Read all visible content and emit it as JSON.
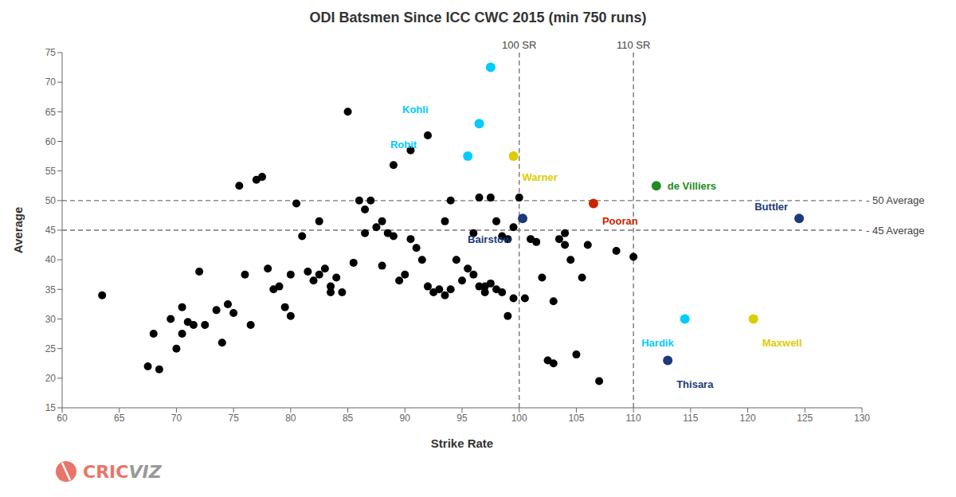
{
  "chart_data": {
    "type": "scatter",
    "title": "ODI Batsmen Since ICC CWC 2015 (min 750 runs)",
    "xlabel": "Strike Rate",
    "ylabel": "Average",
    "xlim": [
      60,
      130
    ],
    "ylim": [
      15,
      75
    ],
    "xticks": [
      60,
      65,
      70,
      75,
      80,
      85,
      90,
      95,
      100,
      105,
      110,
      115,
      120,
      125,
      130
    ],
    "yticks": [
      15,
      20,
      25,
      30,
      35,
      40,
      45,
      50,
      55,
      60,
      65,
      70,
      75
    ],
    "grid": false,
    "series": [
      {
        "color": "#000000",
        "x": [
          63.5,
          67.5,
          68.0,
          68.5,
          69.5,
          70.0,
          70.5,
          70.5,
          71.0,
          71.5,
          72.0,
          72.5,
          73.5,
          74.0,
          74.5,
          75.0,
          75.5,
          76.0,
          76.5,
          77.0,
          77.5,
          78.0,
          78.5,
          79.0,
          79.5,
          80.0,
          80.0,
          80.5,
          81.0,
          81.5,
          82.0,
          82.5,
          82.5,
          83.0,
          83.5,
          83.5,
          84.0,
          84.5,
          85.0,
          85.5,
          86.0,
          86.5,
          86.5,
          87.0,
          87.5,
          88.0,
          88.0,
          88.5,
          89.0,
          89.0,
          89.5,
          90.0,
          90.5,
          90.5,
          91.0,
          91.5,
          92.0,
          92.0,
          92.5,
          93.0,
          93.5,
          93.5,
          94.0,
          94.0,
          94.5,
          95.0,
          95.5,
          96.0,
          96.0,
          96.5,
          96.5,
          97.0,
          97.0,
          97.5,
          97.5,
          98.0,
          98.0,
          98.5,
          98.5,
          99.0,
          99.0,
          99.5,
          99.5,
          100.0,
          100.5,
          101.0,
          101.5,
          102.0,
          102.5,
          103.0,
          103.5,
          104.0,
          104.5,
          105.0,
          105.5,
          106.0,
          107.0,
          108.5,
          110.0,
          103.0,
          104.0
        ],
        "values": [
          34.0,
          22.0,
          27.5,
          21.5,
          30.0,
          25.0,
          27.5,
          32.0,
          29.5,
          29.0,
          38.0,
          29.0,
          31.5,
          26.0,
          32.5,
          31.0,
          52.5,
          37.5,
          29.0,
          53.5,
          54.0,
          38.5,
          35.0,
          35.5,
          32.0,
          37.5,
          30.5,
          49.5,
          44.0,
          38.0,
          36.5,
          37.5,
          46.5,
          38.5,
          34.5,
          35.5,
          37.0,
          34.5,
          65.0,
          39.5,
          50.0,
          44.5,
          48.5,
          50.0,
          45.5,
          39.0,
          46.5,
          44.5,
          44.0,
          56.0,
          36.5,
          37.5,
          43.5,
          58.5,
          42.0,
          40.0,
          35.5,
          61.0,
          34.5,
          35.0,
          34.0,
          46.5,
          35.0,
          50.0,
          40.0,
          36.5,
          38.5,
          37.5,
          44.5,
          35.5,
          50.5,
          34.5,
          35.5,
          36.0,
          50.5,
          35.0,
          46.5,
          34.5,
          44.0,
          30.5,
          43.5,
          33.5,
          45.5,
          50.5,
          33.5,
          43.5,
          43.0,
          37.0,
          23.0,
          33.0,
          43.5,
          42.5,
          40.0,
          24.0,
          37.0,
          42.5,
          19.5,
          41.5,
          40.5,
          22.5,
          44.5
        ]
      },
      {
        "color": "#00CCFF",
        "x": [
          97.5
        ],
        "values": [
          72.5
        ]
      }
    ],
    "annotations": [
      {
        "text": "Kohli",
        "x": 96.5,
        "y": 63.0,
        "color": "#00CCFF"
      },
      {
        "text": "Rohit",
        "x": 95.5,
        "y": 57.5,
        "color": "#00CCFF"
      },
      {
        "text": "Warner",
        "x": 99.5,
        "y": 57.5,
        "color": "#DDCC00"
      },
      {
        "text": "de Villiers",
        "x": 112.0,
        "y": 52.5,
        "color": "#228B22"
      },
      {
        "text": "Bairstow",
        "x": 100.3,
        "y": 47.0,
        "color": "#1C3A7A"
      },
      {
        "text": "Pooran",
        "x": 106.5,
        "y": 49.5,
        "color": "#CC2200"
      },
      {
        "text": "Buttler",
        "x": 124.5,
        "y": 47.0,
        "color": "#1C3A7A"
      },
      {
        "text": "Hardik",
        "x": 114.5,
        "y": 30.0,
        "color": "#00CCFF"
      },
      {
        "text": "Maxwell",
        "x": 120.5,
        "y": 30.0,
        "color": "#DDCC00"
      },
      {
        "text": "Thisara",
        "x": 113.0,
        "y": 23.0,
        "color": "#1C3A7A"
      }
    ],
    "reference_lines": [
      {
        "axis": "x",
        "value": 100,
        "label": "100 SR",
        "color": "#777777",
        "line_style": "dashed"
      },
      {
        "axis": "x",
        "value": 110,
        "label": "110 SR",
        "color": "#777777",
        "line_style": "dashed"
      },
      {
        "axis": "y",
        "value": 50,
        "label": "- 50 Average",
        "color": "#777777",
        "line_style": "dashed"
      },
      {
        "axis": "y",
        "value": 45,
        "label": "- 45 Average",
        "color": "#777777",
        "line_style": "dashed"
      }
    ],
    "logo": [
      {
        "text": "CRIC",
        "color": "#E8756A"
      },
      {
        "text": "VIZ",
        "color": "#999999"
      }
    ]
  }
}
